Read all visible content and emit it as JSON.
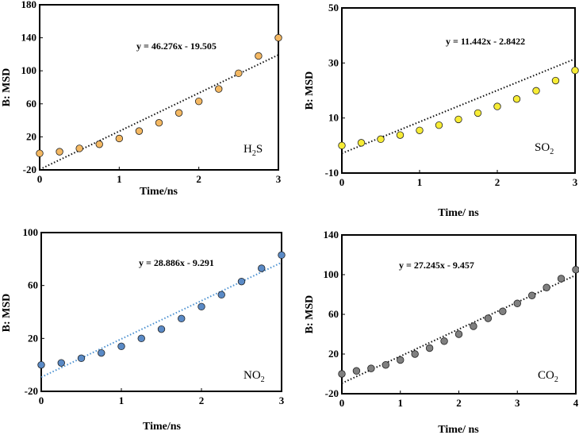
{
  "chart_data": [
    {
      "type": "scatter",
      "gas_main": "H",
      "gas_sub": "2",
      "gas_tail": "S",
      "equation": "y = 46.276x - 19.505",
      "fit": {
        "slope": 46.276,
        "intercept": -19.505
      },
      "xlabel": "Time/ns",
      "ylabel": "B: MSD",
      "xlim": [
        0,
        3
      ],
      "ylim": [
        -20,
        180
      ],
      "xticks": [
        "0",
        "1",
        "2",
        "3"
      ],
      "yticks": [
        "-20",
        "20",
        "60",
        "100",
        "140",
        "180"
      ],
      "marker_color": "#f4b862",
      "trend_color": "#111111",
      "x": [
        0,
        0.25,
        0.5,
        0.75,
        1.0,
        1.25,
        1.5,
        1.75,
        2.0,
        2.25,
        2.5,
        2.75,
        3.0
      ],
      "y": [
        0,
        2,
        6,
        11,
        18,
        27,
        37,
        49,
        63,
        78,
        97,
        118,
        140
      ]
    },
    {
      "type": "scatter",
      "gas_main": "SO",
      "gas_sub": "2",
      "gas_tail": "",
      "equation": "y = 11.442x - 2.8422",
      "fit": {
        "slope": 11.442,
        "intercept": -2.8422
      },
      "xlabel": "Time/ ns",
      "ylabel": "B: MSD",
      "xlim": [
        0,
        3
      ],
      "ylim": [
        -10,
        50
      ],
      "xticks": [
        "0",
        "1",
        "2",
        "3"
      ],
      "yticks": [
        "-10",
        "10",
        "30",
        "50"
      ],
      "marker_color": "#f7ec35",
      "trend_color": "#111111",
      "x": [
        0,
        0.25,
        0.5,
        0.75,
        1.0,
        1.25,
        1.5,
        1.75,
        2.0,
        2.25,
        2.5,
        2.75,
        3.0
      ],
      "y": [
        0,
        1,
        2.3,
        3.8,
        5.5,
        7.4,
        9.5,
        11.8,
        14.2,
        16.9,
        19.9,
        23.6,
        27.3
      ]
    },
    {
      "type": "scatter",
      "gas_main": "NO",
      "gas_sub": "2",
      "gas_tail": "",
      "equation": "y = 28.886x - 9.291",
      "fit": {
        "slope": 28.886,
        "intercept": -9.291
      },
      "xlabel": "Time/ns",
      "ylabel": "B: MSD",
      "xlim": [
        0,
        3
      ],
      "ylim": [
        -20,
        100
      ],
      "xticks": [
        "0",
        "1",
        "2",
        "3"
      ],
      "yticks": [
        "-20",
        "20",
        "60",
        "100"
      ],
      "marker_color": "#5a8ac6",
      "trend_color": "#4a90d0",
      "x": [
        0,
        0.25,
        0.5,
        0.75,
        1.0,
        1.25,
        1.5,
        1.75,
        2.0,
        2.25,
        2.5,
        2.75,
        3.0
      ],
      "y": [
        0,
        1.5,
        5,
        9,
        14,
        20,
        27,
        35,
        44,
        53,
        63,
        73,
        83
      ]
    },
    {
      "type": "scatter",
      "gas_main": "CO",
      "gas_sub": "2",
      "gas_tail": "",
      "equation": "y = 27.245x - 9.457",
      "fit": {
        "slope": 27.245,
        "intercept": -9.457
      },
      "xlabel": "Time/ ns",
      "ylabel": "B: MSD",
      "xlim": [
        0,
        4
      ],
      "ylim": [
        -20,
        140
      ],
      "xticks": [
        "0",
        "1",
        "2",
        "3",
        "4"
      ],
      "yticks": [
        "-20",
        "20",
        "60",
        "100",
        "140"
      ],
      "marker_color": "#808080",
      "trend_color": "#111111",
      "x": [
        0,
        0.25,
        0.5,
        0.75,
        1.0,
        1.25,
        1.5,
        1.75,
        2.0,
        2.25,
        2.5,
        2.75,
        3.0,
        3.25,
        3.5,
        3.75,
        4.0
      ],
      "y": [
        0,
        3,
        5.5,
        9,
        14,
        20,
        26,
        33,
        40,
        48,
        56,
        63,
        71,
        79,
        87,
        96,
        105
      ]
    }
  ]
}
